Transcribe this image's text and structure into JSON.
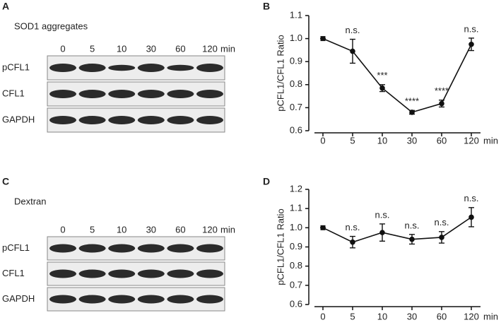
{
  "blots": [
    {
      "panel": "A",
      "title": "SOD1 aggregates",
      "lanes": [
        "0",
        "5",
        "10",
        "30",
        "60",
        "120"
      ],
      "unit": "min",
      "rows": [
        "pCFL1",
        "CFL1",
        "GAPDH"
      ]
    },
    {
      "panel": "C",
      "title": "Dextran",
      "lanes": [
        "0",
        "5",
        "10",
        "30",
        "60",
        "120"
      ],
      "unit": "min",
      "rows": [
        "pCFL1",
        "CFL1",
        "GAPDH"
      ]
    }
  ],
  "chart_data": [
    {
      "type": "line",
      "panel": "B",
      "categories": [
        "0",
        "5",
        "10",
        "30",
        "60",
        "120"
      ],
      "x_label": "min",
      "y_label": "pCFL1/CFL1 Ratio",
      "ylim": [
        0.6,
        1.1
      ],
      "yticks": [
        0.6,
        0.7,
        0.8,
        0.9,
        {
          "value": 1,
          "label": "1.0"
        },
        1.1
      ],
      "series": [
        {
          "color": "#111111",
          "values": [
            1.0,
            0.945,
            0.785,
            0.68,
            0.718,
            0.975
          ],
          "errors": [
            0,
            0.052,
            0.015,
            0.008,
            0.015,
            0.027
          ]
        }
      ],
      "annotations": [
        null,
        "n.s.",
        "***",
        "****",
        "****",
        "n.s."
      ]
    },
    {
      "type": "line",
      "panel": "D",
      "categories": [
        "0",
        "5",
        "10",
        "30",
        "60",
        "120"
      ],
      "x_label": "min",
      "y_label": "pCFL1/CFL1 Ratio",
      "ylim": [
        0.6,
        1.2
      ],
      "yticks": [
        0.6,
        0.7,
        0.8,
        0.9,
        {
          "value": 1,
          "label": "1.0"
        },
        1.1,
        1.2
      ],
      "series": [
        {
          "color": "#111111",
          "values": [
            1.0,
            0.925,
            0.975,
            0.94,
            0.95,
            1.055
          ],
          "errors": [
            0,
            0.03,
            0.045,
            0.025,
            0.03,
            0.05
          ]
        }
      ],
      "annotations": [
        null,
        "n.s.",
        "n.s.",
        "n.s.",
        "n.s.",
        "n.s."
      ]
    }
  ]
}
